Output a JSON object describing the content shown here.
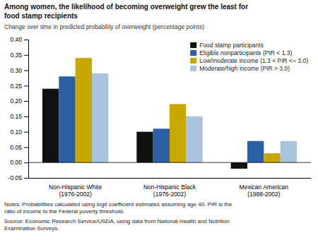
{
  "chart_data": {
    "type": "bar",
    "title": "Among women, the likelihood of becoming overweight grew the least for\nfood stamp recipients",
    "subtitle": "Change over time in predicted probability of overweight (percentage points)",
    "categories": [
      "Non-Hispanic White\n(1976-2002)",
      "Non-Hispanic Black\n(1976-2002)",
      "Mexican American\n(1988-2002)"
    ],
    "series": [
      {
        "name": "Food stamp participants",
        "color": "#111111",
        "values": [
          0.24,
          0.1,
          -0.02
        ]
      },
      {
        "name": "Eligible nonparticipants (PIR < 1.3)",
        "color": "#2a5fa5",
        "values": [
          0.28,
          0.11,
          0.07
        ]
      },
      {
        "name": "Low/moderate income (1.3 < PIR <= 3.0)",
        "color": "#c8a800",
        "values": [
          0.34,
          0.19,
          0.03
        ]
      },
      {
        "name": "Moderate/high income (PIR > 3.0)",
        "color": "#a8c4de",
        "values": [
          0.29,
          0.15,
          0.07
        ]
      }
    ],
    "ylim": [
      -0.05,
      0.4
    ],
    "yticks": [
      -0.05,
      {
        "value": 0.0,
        "label": "0.00"
      },
      0.05,
      {
        "value": 0.1,
        "label": "0.10"
      },
      0.15,
      {
        "value": 0.2,
        "label": "0.20"
      },
      0.25,
      {
        "value": 0.3,
        "label": "0.30"
      },
      0.35,
      {
        "value": 0.4,
        "label": "0.40"
      }
    ],
    "grid": false,
    "legend": "upper right",
    "annotations": [
      "Notes:  Probabilities calculated using logit coefficient estimates assuming age 40. PIR is the\nratio of income to the Federal poverty threshold.",
      "Source:  Economic Research Service/USDA, using data from National Health and Nutrition\nExamination Surveys."
    ]
  }
}
